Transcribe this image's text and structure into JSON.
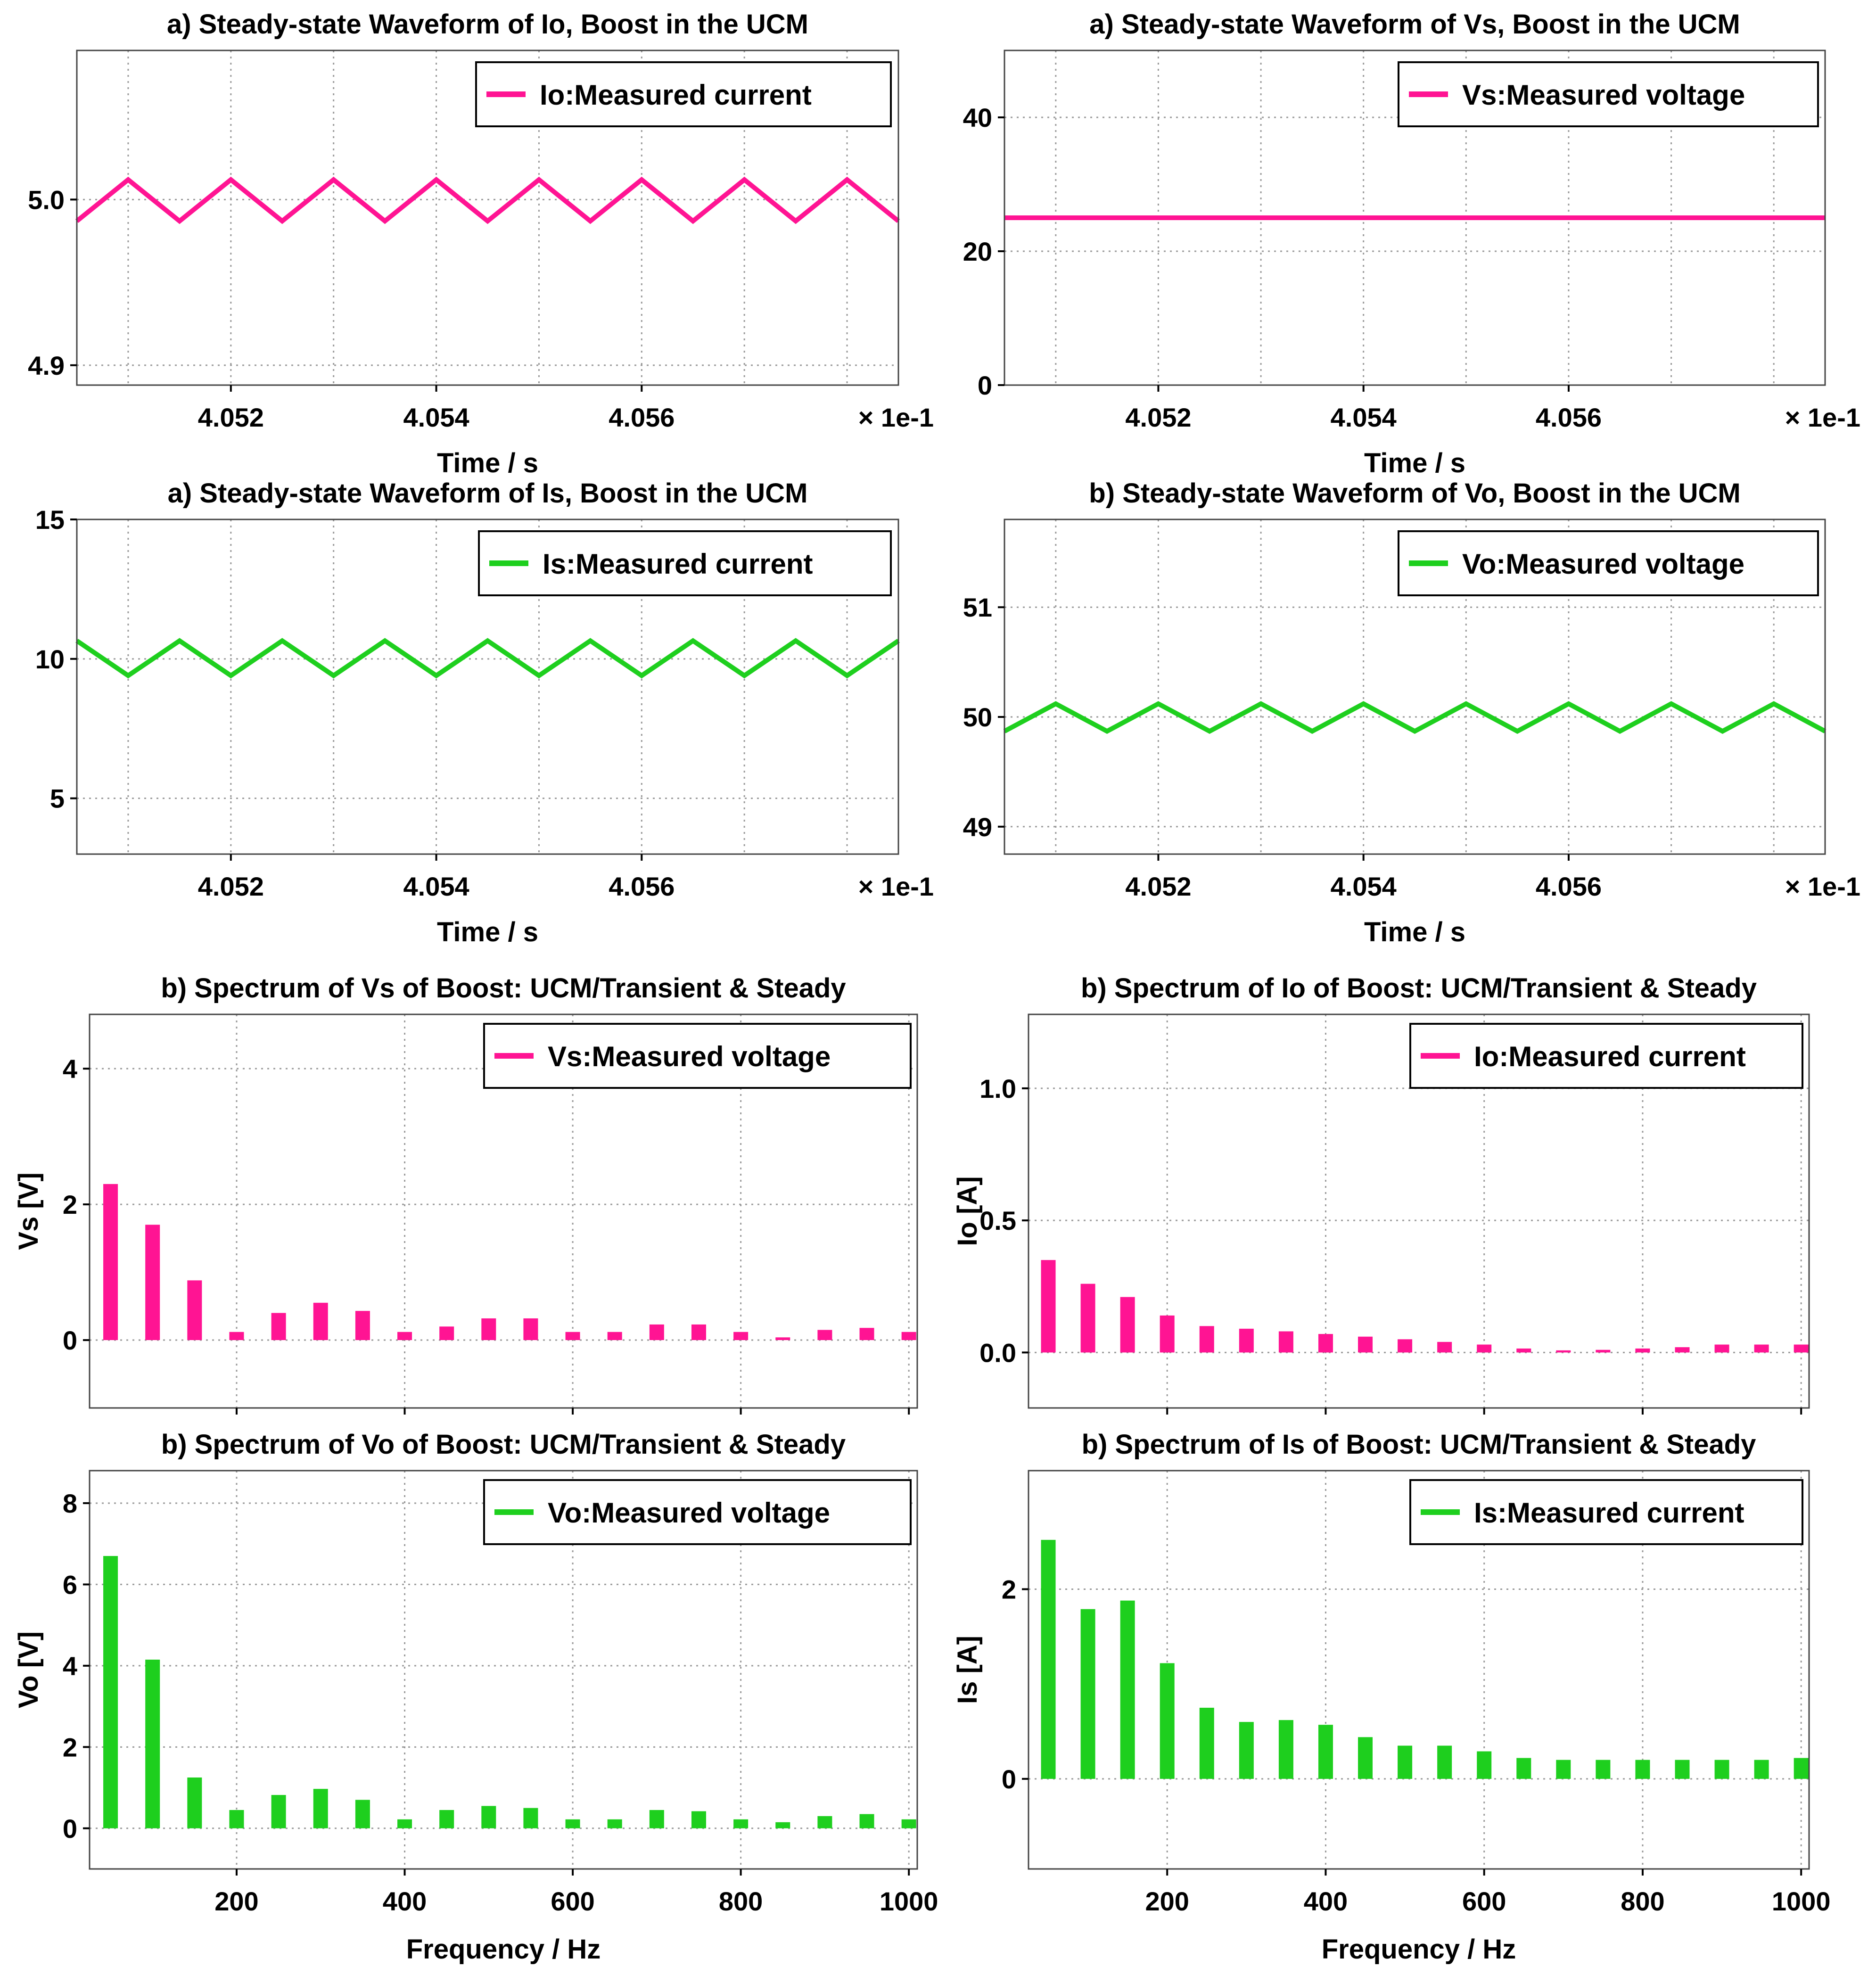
{
  "colors": {
    "pink": "#ff1493",
    "green": "#1ecf1e",
    "grid": "#9a9a9a",
    "axis": "#000000"
  },
  "chart_data": [
    {
      "id": "io-wave",
      "type": "line",
      "title": "a) Steady-state Waveform of Io, Boost  in the  UCM",
      "xlabel": "Time / s",
      "ylabel": "",
      "x_multiplier": "× 1e-1",
      "xlim": [
        4.0505,
        4.0585
      ],
      "ylim": [
        4.888,
        5.09
      ],
      "xticks": [
        4.052,
        4.054,
        4.056
      ],
      "xtick_labels": [
        "4.052",
        "4.054",
        "4.056"
      ],
      "xgrid": [
        4.051,
        4.052,
        4.053,
        4.054,
        4.055,
        4.056,
        4.057,
        4.058
      ],
      "yticks": [
        4.9,
        5.0
      ],
      "ytick_labels": [
        "4.9",
        "5.0"
      ],
      "grid": true,
      "legend": "top-right",
      "series": [
        {
          "name": "Io:Measured current",
          "color": "#ff1493",
          "x": [
            4.0505,
            4.051,
            4.0515,
            4.052,
            4.0525,
            4.053,
            4.0535,
            4.054,
            4.0545,
            4.055,
            4.0555,
            4.056,
            4.0565,
            4.057,
            4.0575,
            4.058,
            4.0585
          ],
          "y": [
            4.987,
            5.012,
            4.987,
            5.012,
            4.987,
            5.012,
            4.987,
            5.012,
            4.987,
            5.012,
            4.987,
            5.012,
            4.987,
            5.012,
            4.987,
            5.012,
            4.987
          ]
        }
      ]
    },
    {
      "id": "vs-wave",
      "type": "line",
      "title": "a) Steady-state Waveform of Vs, Boost in the  UCM",
      "xlabel": "Time / s",
      "ylabel": "",
      "x_multiplier": "× 1e-1",
      "xlim": [
        4.0505,
        4.0585
      ],
      "ylim": [
        0,
        50
      ],
      "xticks": [
        4.052,
        4.054,
        4.056
      ],
      "xtick_labels": [
        "4.052",
        "4.054",
        "4.056"
      ],
      "xgrid": [
        4.051,
        4.052,
        4.053,
        4.054,
        4.055,
        4.056,
        4.057,
        4.058
      ],
      "yticks": [
        0,
        20,
        40
      ],
      "ytick_labels": [
        "0",
        "20",
        "40"
      ],
      "grid": true,
      "legend": "top-right",
      "series": [
        {
          "name": "Vs:Measured voltage",
          "color": "#ff1493",
          "x": [
            4.0505,
            4.0585
          ],
          "y": [
            25,
            25
          ]
        }
      ]
    },
    {
      "id": "is-wave",
      "type": "line",
      "title": "a) Steady-state Waveform of Is, Boost in the  UCM",
      "xlabel": "Time / s",
      "ylabel": "",
      "x_multiplier": "× 1e-1",
      "xlim": [
        4.0505,
        4.0585
      ],
      "ylim": [
        3,
        15
      ],
      "xticks": [
        4.052,
        4.054,
        4.056
      ],
      "xtick_labels": [
        "4.052",
        "4.054",
        "4.056"
      ],
      "xgrid": [
        4.051,
        4.052,
        4.053,
        4.054,
        4.055,
        4.056,
        4.057,
        4.058
      ],
      "yticks": [
        5,
        10,
        15
      ],
      "ytick_labels": [
        "5",
        "10",
        "15"
      ],
      "grid": true,
      "legend": "top-right",
      "series": [
        {
          "name": "Is:Measured current",
          "color": "#1ecf1e",
          "x": [
            4.0505,
            4.051,
            4.0515,
            4.052,
            4.0525,
            4.053,
            4.0535,
            4.054,
            4.0545,
            4.055,
            4.0555,
            4.056,
            4.0565,
            4.057,
            4.0575,
            4.058,
            4.0585
          ],
          "y": [
            10.65,
            9.4,
            10.65,
            9.4,
            10.65,
            9.4,
            10.65,
            9.4,
            10.65,
            9.4,
            10.65,
            9.4,
            10.65,
            9.4,
            10.65,
            9.4,
            10.65
          ]
        }
      ]
    },
    {
      "id": "vo-wave",
      "type": "line",
      "title": "b) Steady-state Waveform of Vo, Boost in the  UCM",
      "xlabel": "Time / s",
      "ylabel": "",
      "x_multiplier": "× 1e-1",
      "xlim": [
        4.0505,
        4.0585
      ],
      "ylim": [
        48.75,
        51.8
      ],
      "xticks": [
        4.052,
        4.054,
        4.056
      ],
      "xtick_labels": [
        "4.052",
        "4.054",
        "4.056"
      ],
      "xgrid": [
        4.051,
        4.052,
        4.053,
        4.054,
        4.055,
        4.056,
        4.057,
        4.058
      ],
      "yticks": [
        49,
        50,
        51
      ],
      "ytick_labels": [
        "49",
        "50",
        "51"
      ],
      "grid": true,
      "legend": "top-right",
      "series": [
        {
          "name": "Vo:Measured voltage",
          "color": "#1ecf1e",
          "x": [
            4.0505,
            4.051,
            4.0515,
            4.052,
            4.0525,
            4.053,
            4.0535,
            4.054,
            4.0545,
            4.055,
            4.0555,
            4.056,
            4.0565,
            4.057,
            4.0575,
            4.058,
            4.0585
          ],
          "y": [
            49.87,
            50.12,
            49.87,
            50.12,
            49.87,
            50.12,
            49.87,
            50.12,
            49.87,
            50.12,
            49.87,
            50.12,
            49.87,
            50.12,
            49.87,
            50.12,
            49.87
          ]
        }
      ]
    },
    {
      "id": "vs-spectrum",
      "type": "bar",
      "title": "b) Spectrum of Vs of Boost: UCM/Transient & Steady",
      "xlabel": "",
      "ylabel": "Vs [V]",
      "xlim": [
        25,
        1010
      ],
      "ylim": [
        -1,
        4.8
      ],
      "xticks": [
        200,
        400,
        600,
        800,
        1000
      ],
      "xtick_labels": [
        "",
        "",
        "",
        "",
        ""
      ],
      "xgrid": [
        200,
        400,
        600,
        800,
        1000
      ],
      "yticks": [
        0,
        2,
        4
      ],
      "ytick_labels": [
        "0",
        "2",
        "4"
      ],
      "grid": true,
      "legend": "top-right",
      "series": [
        {
          "name": "Vs:Measured voltage",
          "color": "#ff1493",
          "x": [
            50,
            100,
            150,
            200,
            250,
            300,
            350,
            400,
            450,
            500,
            550,
            600,
            650,
            700,
            750,
            800,
            850,
            900,
            950,
            1000
          ],
          "values": [
            2.3,
            1.7,
            0.88,
            0.12,
            0.4,
            0.55,
            0.43,
            0.12,
            0.2,
            0.32,
            0.32,
            0.12,
            0.12,
            0.23,
            0.23,
            0.12,
            0.04,
            0.15,
            0.18,
            0.12
          ]
        }
      ]
    },
    {
      "id": "io-spectrum",
      "type": "bar",
      "title": "b) Spectrum of Io of Boost: UCM/Transient & Steady",
      "xlabel": "",
      "ylabel": "Io [A]",
      "xlim": [
        25,
        1010
      ],
      "ylim": [
        -0.21,
        1.28
      ],
      "xticks": [
        200,
        400,
        600,
        800,
        1000
      ],
      "xtick_labels": [
        "",
        "",
        "",
        "",
        ""
      ],
      "xgrid": [
        200,
        400,
        600,
        800,
        1000
      ],
      "yticks": [
        0.0,
        0.5,
        1.0
      ],
      "ytick_labels": [
        "0.0",
        "0.5",
        "1.0"
      ],
      "grid": true,
      "legend": "top-right",
      "series": [
        {
          "name": "Io:Measured current",
          "color": "#ff1493",
          "x": [
            50,
            100,
            150,
            200,
            250,
            300,
            350,
            400,
            450,
            500,
            550,
            600,
            650,
            700,
            750,
            800,
            850,
            900,
            950,
            1000
          ],
          "values": [
            0.35,
            0.26,
            0.21,
            0.14,
            0.1,
            0.09,
            0.08,
            0.07,
            0.06,
            0.05,
            0.04,
            0.03,
            0.015,
            0.008,
            0.01,
            0.015,
            0.02,
            0.03,
            0.03,
            0.03
          ]
        }
      ]
    },
    {
      "id": "vo-spectrum",
      "type": "bar",
      "title": "b) Spectrum of Vo of Boost: UCM/Transient & Steady",
      "xlabel": "Frequency / Hz",
      "ylabel": "Vo [V]",
      "xlim": [
        25,
        1010
      ],
      "ylim": [
        -1,
        8.8
      ],
      "xticks": [
        200,
        400,
        600,
        800,
        1000
      ],
      "xtick_labels": [
        "200",
        "400",
        "600",
        "800",
        "1000"
      ],
      "xgrid": [
        200,
        400,
        600,
        800,
        1000
      ],
      "yticks": [
        0,
        2,
        4,
        6,
        8
      ],
      "ytick_labels": [
        "0",
        "2",
        "4",
        "6",
        "8"
      ],
      "grid": true,
      "legend": "top-right",
      "series": [
        {
          "name": "Vo:Measured voltage",
          "color": "#1ecf1e",
          "x": [
            50,
            100,
            150,
            200,
            250,
            300,
            350,
            400,
            450,
            500,
            550,
            600,
            650,
            700,
            750,
            800,
            850,
            900,
            950,
            1000
          ],
          "values": [
            6.7,
            4.15,
            1.25,
            0.45,
            0.82,
            0.97,
            0.7,
            0.22,
            0.45,
            0.55,
            0.5,
            0.22,
            0.22,
            0.45,
            0.42,
            0.22,
            0.15,
            0.3,
            0.35,
            0.22
          ]
        }
      ]
    },
    {
      "id": "is-spectrum",
      "type": "bar",
      "title": "b) Spectrum of Is of Boost: UCM/Transient & Steady",
      "xlabel": "Frequency / Hz",
      "ylabel": "Is [A]",
      "xlim": [
        25,
        1010
      ],
      "ylim": [
        -0.95,
        3.25
      ],
      "xticks": [
        200,
        400,
        600,
        800,
        1000
      ],
      "xtick_labels": [
        "200",
        "400",
        "600",
        "800",
        "1000"
      ],
      "xgrid": [
        200,
        400,
        600,
        800,
        1000
      ],
      "yticks": [
        0,
        2
      ],
      "ytick_labels": [
        "0",
        "2"
      ],
      "grid": true,
      "legend": "top-right",
      "series": [
        {
          "name": "Is:Measured current",
          "color": "#1ecf1e",
          "x": [
            50,
            100,
            150,
            200,
            250,
            300,
            350,
            400,
            450,
            500,
            550,
            600,
            650,
            700,
            750,
            800,
            850,
            900,
            950,
            1000
          ],
          "values": [
            2.52,
            1.79,
            1.88,
            1.22,
            0.75,
            0.6,
            0.62,
            0.57,
            0.44,
            0.35,
            0.35,
            0.29,
            0.22,
            0.2,
            0.2,
            0.2,
            0.2,
            0.2,
            0.2,
            0.22
          ]
        }
      ]
    }
  ]
}
